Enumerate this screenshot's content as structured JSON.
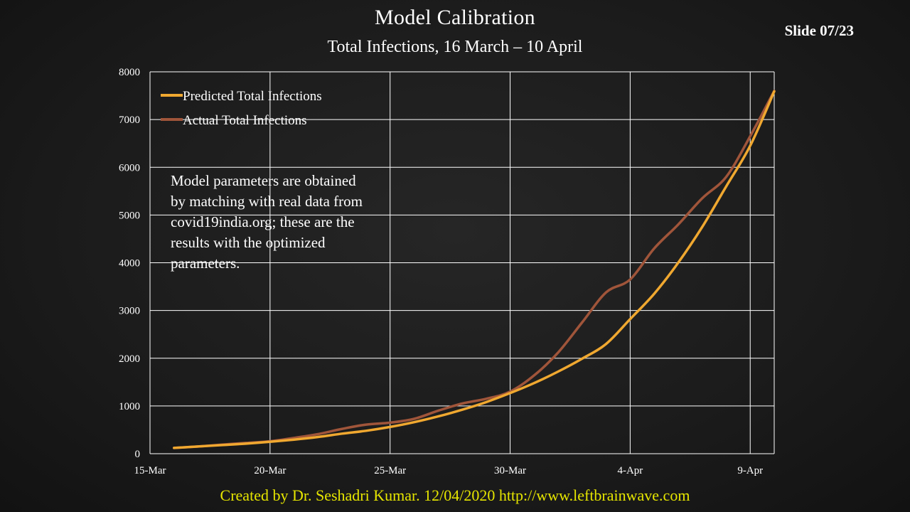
{
  "slide": {
    "title": "Model Calibration",
    "subtitle": "Total Infections, 16 March – 10 April",
    "slide_number": "Slide 07/23",
    "footer": "Created by Dr. Seshadri Kumar. 12/04/2020 http://www.leftbrainwave.com",
    "footer_color": "#e6e600",
    "note": "Model parameters are obtained\nby matching with real data from\ncovid19india.org; these are the\nresults with the optimized\nparameters."
  },
  "chart_data": {
    "type": "line",
    "x_tick_labels": [
      "15-Mar",
      "20-Mar",
      "25-Mar",
      "30-Mar",
      "4-Apr",
      "9-Apr"
    ],
    "x_tick_dates": [
      "2020-03-15",
      "2020-03-20",
      "2020-03-25",
      "2020-03-30",
      "2020-04-04",
      "2020-04-09"
    ],
    "xlim": [
      "2020-03-15",
      "2020-04-10"
    ],
    "y_ticks": [
      0,
      1000,
      2000,
      3000,
      4000,
      5000,
      6000,
      7000,
      8000
    ],
    "ylim": [
      0,
      8000
    ],
    "grid": true,
    "legend_position": "top-left",
    "x": [
      "2020-03-16",
      "2020-03-17",
      "2020-03-18",
      "2020-03-19",
      "2020-03-20",
      "2020-03-21",
      "2020-03-22",
      "2020-03-23",
      "2020-03-24",
      "2020-03-25",
      "2020-03-26",
      "2020-03-27",
      "2020-03-28",
      "2020-03-29",
      "2020-03-30",
      "2020-03-31",
      "2020-04-01",
      "2020-04-02",
      "2020-04-03",
      "2020-04-04",
      "2020-04-05",
      "2020-04-06",
      "2020-04-07",
      "2020-04-08",
      "2020-04-09",
      "2020-04-10"
    ],
    "series": [
      {
        "name": "Predicted Total Infections",
        "color": "#f0a830",
        "values": [
          120,
          150,
          180,
          210,
          250,
          295,
          350,
          420,
          480,
          560,
          660,
          780,
          920,
          1080,
          1270,
          1480,
          1720,
          1990,
          2300,
          2820,
          3350,
          4000,
          4750,
          5600,
          6450,
          7590
        ]
      },
      {
        "name": "Actual Total Infections",
        "color": "#a0553a",
        "values": [
          120,
          150,
          190,
          225,
          260,
          330,
          410,
          520,
          610,
          650,
          730,
          900,
          1050,
          1150,
          1300,
          1640,
          2120,
          2750,
          3380,
          3650,
          4300,
          4800,
          5350,
          5800,
          6650,
          7600
        ]
      }
    ]
  }
}
